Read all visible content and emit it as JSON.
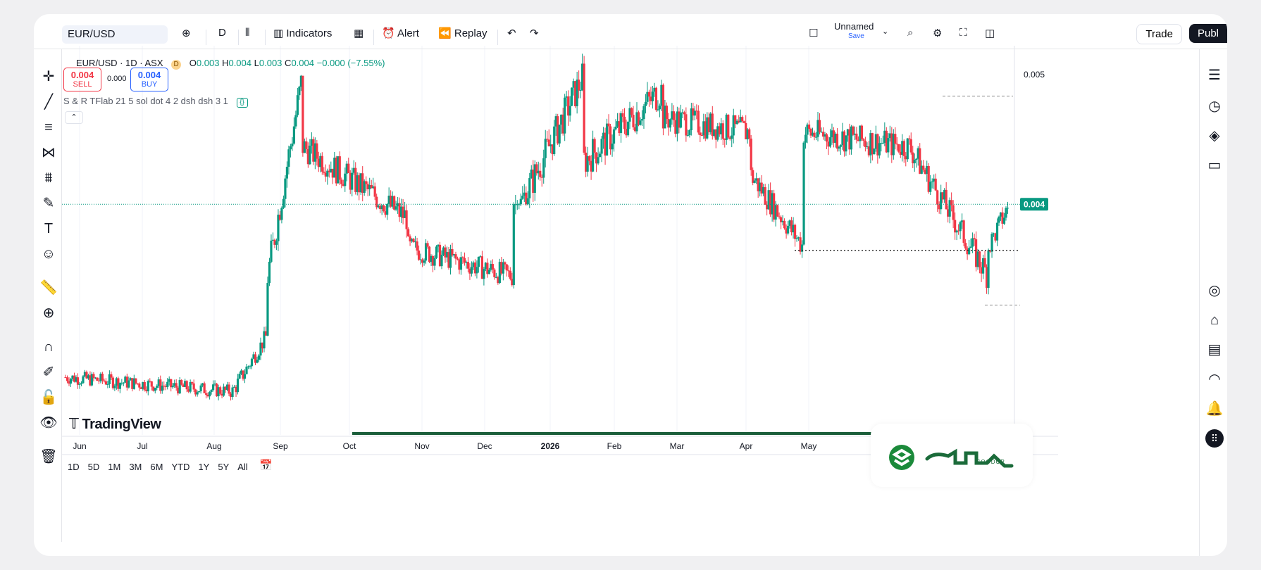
{
  "topbar": {
    "symbol": "EUR/USD",
    "interval": "D",
    "indicators_label": "Indicators",
    "alert_label": "Alert",
    "replay_label": "Replay",
    "layout_name": "Unnamed",
    "save_label": "Save",
    "trade_label": "Trade",
    "publish_label": "Publ"
  },
  "legend": {
    "title": "EUR/USD · 1D · ASX",
    "badge": "D",
    "o_label": "O",
    "o_value": "0.003",
    "h_label": "H",
    "h_value": "0.004",
    "l_label": "L",
    "l_value": "0.003",
    "c_label": "C",
    "c_value": "0.004",
    "change": "−0.000 (−7.55%)"
  },
  "trade_panel": {
    "sell_value": "0.004",
    "sell_label": "SELL",
    "spread": "0.000",
    "buy_value": "0.004",
    "buy_label": "BUY"
  },
  "indicator": {
    "text": "S & R TFlab 21 5 sol dot 4 2 dsh dsh 3 1",
    "icon": "{}"
  },
  "logo_text": "TradingView",
  "periods": [
    "1D",
    "5D",
    "1M",
    "3M",
    "6M",
    "YTD",
    "1Y",
    "5Y",
    "All"
  ],
  "watermark": {
    "text": "SOODUP"
  },
  "colors": {
    "up": "#089981",
    "down": "#f23645",
    "accent": "#2962ff",
    "support": "#1b5e3a"
  },
  "chart_data": {
    "type": "candlestick",
    "x_labels": [
      "Jun",
      "Jul",
      "Aug",
      "Sep",
      "Oct",
      "Nov",
      "Dec",
      "2026",
      "Feb",
      "Mar",
      "Apr",
      "May"
    ],
    "y_ticks": [
      "0.005"
    ],
    "current_price_label": "0.004",
    "current_price": 0.0041,
    "ylim": [
      0.0025,
      0.0052
    ],
    "levels": [
      0.00485,
      0.00378,
      0.0034
    ],
    "segments": [
      {
        "start": 0.0029,
        "end": 0.0028,
        "count": 95,
        "vol": 5e-05,
        "lo": 0.0026,
        "hi": 0.0032
      },
      {
        "start": 0.0028,
        "end": 0.0032,
        "count": 20,
        "vol": 6e-05,
        "lo": 0.0026,
        "hi": 0.0033
      },
      {
        "start": 0.0036,
        "end": 0.005,
        "count": 20,
        "vol": 0.00012,
        "lo": 0.0034,
        "hi": 0.0052
      },
      {
        "start": 0.0045,
        "end": 0.004,
        "count": 60,
        "vol": 0.0001,
        "lo": 0.0035,
        "hi": 0.0048
      },
      {
        "start": 0.0038,
        "end": 0.0036,
        "count": 60,
        "vol": 8e-05,
        "lo": 0.0035,
        "hi": 0.0042
      },
      {
        "start": 0.004,
        "end": 0.005,
        "count": 40,
        "vol": 0.00012,
        "lo": 0.0041,
        "hi": 0.0052
      },
      {
        "start": 0.0044,
        "end": 0.0049,
        "count": 45,
        "vol": 0.00012,
        "lo": 0.0041,
        "hi": 0.0052
      },
      {
        "start": 0.0047,
        "end": 0.0046,
        "count": 50,
        "vol": 0.0001,
        "lo": 0.0043,
        "hi": 0.005
      },
      {
        "start": 0.0043,
        "end": 0.0038,
        "count": 30,
        "vol": 9e-05,
        "lo": 0.0037,
        "hi": 0.0046
      },
      {
        "start": 0.0046,
        "end": 0.0045,
        "count": 60,
        "vol": 0.0001,
        "lo": 0.0042,
        "hi": 0.005
      },
      {
        "start": 0.0045,
        "end": 0.0036,
        "count": 45,
        "vol": 0.0001,
        "lo": 0.0034,
        "hi": 0.0048
      },
      {
        "start": 0.0038,
        "end": 0.0041,
        "count": 12,
        "vol": 8e-05,
        "lo": 0.0034,
        "hi": 0.0043
      }
    ]
  }
}
